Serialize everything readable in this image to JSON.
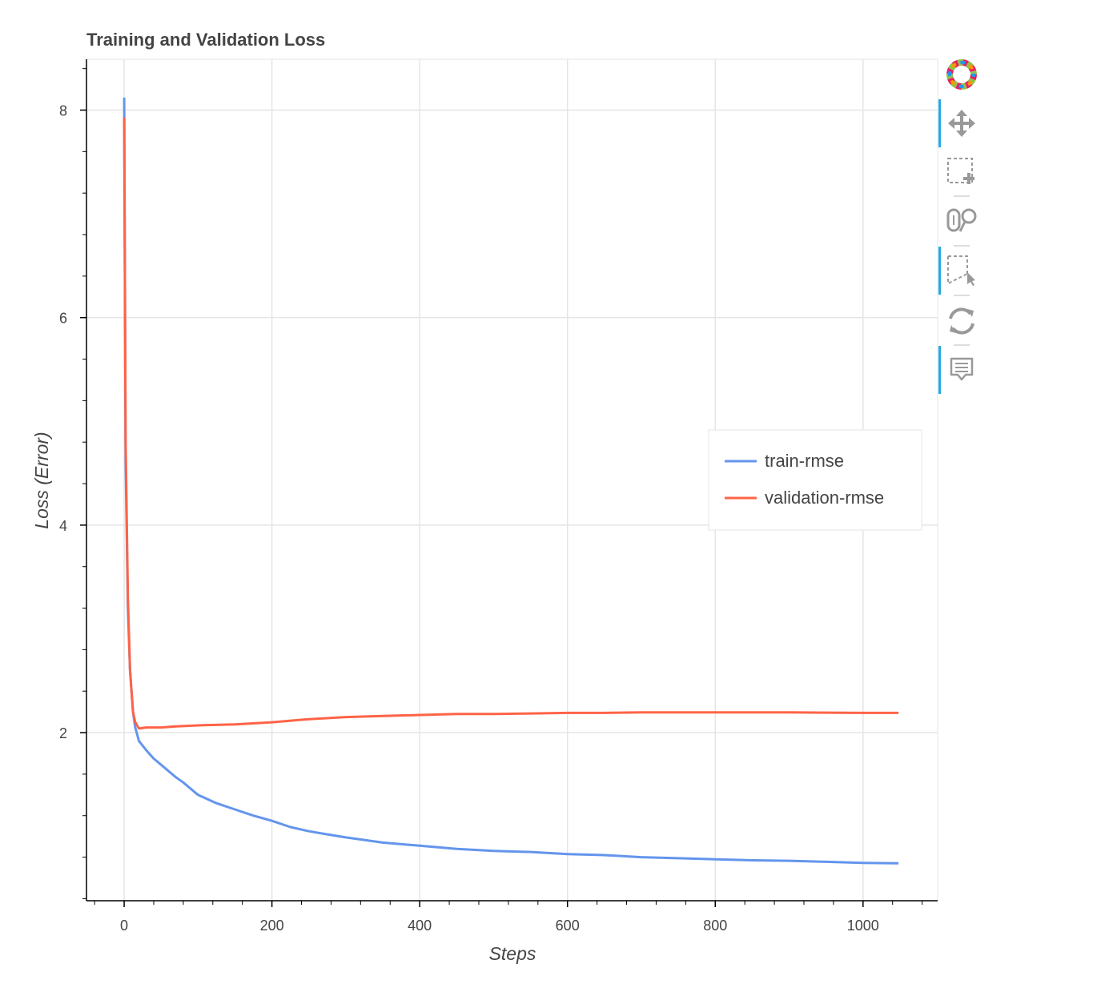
{
  "chart_data": {
    "type": "line",
    "title": "Training and Validation Loss",
    "xlabel": "Steps",
    "ylabel": "Loss (Error)",
    "xlim": [
      -51,
      1101
    ],
    "ylim": [
      0.38,
      8.49
    ],
    "xticks": [
      0,
      200,
      400,
      600,
      800,
      1000
    ],
    "yticks": [
      2,
      4,
      6,
      8
    ],
    "grid": true,
    "legend_position": "right",
    "series": [
      {
        "name": "train-rmse",
        "color": "#6495ed",
        "x": [
          0,
          2,
          5,
          8,
          12,
          15,
          20,
          30,
          40,
          50,
          60,
          70,
          80,
          100,
          125,
          150,
          175,
          200,
          225,
          250,
          275,
          300,
          350,
          400,
          450,
          500,
          550,
          600,
          650,
          700,
          750,
          800,
          850,
          900,
          950,
          1000,
          1048
        ],
        "y": [
          8.12,
          4.6,
          3.2,
          2.6,
          2.2,
          2.05,
          1.92,
          1.83,
          1.75,
          1.69,
          1.63,
          1.57,
          1.52,
          1.4,
          1.32,
          1.26,
          1.2,
          1.15,
          1.09,
          1.05,
          1.02,
          0.99,
          0.94,
          0.91,
          0.88,
          0.86,
          0.85,
          0.83,
          0.82,
          0.8,
          0.79,
          0.78,
          0.77,
          0.765,
          0.755,
          0.745,
          0.74
        ]
      },
      {
        "name": "validation-rmse",
        "color": "#ff6347",
        "x": [
          0,
          2,
          5,
          8,
          12,
          15,
          20,
          30,
          50,
          70,
          100,
          150,
          200,
          250,
          300,
          350,
          400,
          450,
          500,
          550,
          600,
          650,
          700,
          800,
          900,
          1000,
          1048
        ],
        "y": [
          7.93,
          4.8,
          3.3,
          2.6,
          2.2,
          2.1,
          2.04,
          2.05,
          2.05,
          2.06,
          2.07,
          2.08,
          2.1,
          2.13,
          2.15,
          2.16,
          2.17,
          2.18,
          2.18,
          2.185,
          2.19,
          2.19,
          2.195,
          2.195,
          2.195,
          2.19,
          2.19
        ]
      }
    ]
  },
  "toolbar": {
    "tools": [
      {
        "name": "pan",
        "icon": "move-icon",
        "active": true
      },
      {
        "name": "box-zoom",
        "icon": "box-zoom-icon",
        "active": false
      },
      {
        "name": "wheel-zoom",
        "icon": "wheel-zoom-icon",
        "active": false
      },
      {
        "name": "box-select",
        "icon": "box-select-icon",
        "active": true
      },
      {
        "name": "reset",
        "icon": "reset-icon",
        "active": false
      },
      {
        "name": "hover",
        "icon": "hover-icon",
        "active": true
      }
    ]
  }
}
